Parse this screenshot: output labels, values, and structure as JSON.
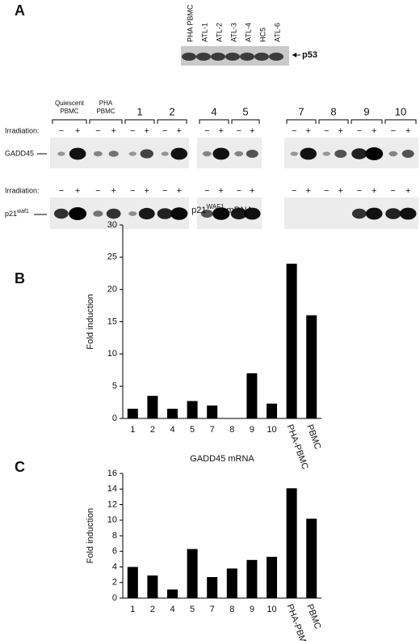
{
  "panel_a": {
    "label": "A",
    "p53_lanes": [
      "PHA PBMC",
      "ATL-1",
      "ATL-2",
      "ATL-3",
      "ATL-4",
      "HC5",
      "ATL-6"
    ],
    "p53_label": "p53",
    "groups": [
      [
        "Quiescent",
        "PBMC"
      ],
      [
        "PHA",
        "PBMC"
      ],
      [
        "1"
      ],
      [
        "2"
      ],
      [
        "4"
      ],
      [
        "5"
      ],
      [
        "7"
      ],
      [
        "8"
      ],
      [
        "9"
      ],
      [
        "10"
      ]
    ],
    "irradiation": "Irradiation:",
    "minus": "−",
    "plus": "+",
    "gadd45": "GADD45",
    "p21": "p21",
    "p21_sup": "waf1"
  },
  "chart_data": [
    {
      "type": "bar",
      "label": "B",
      "title": "p21",
      "title_sup": "WAF1",
      "title_rest": " mRNA",
      "y_label": "Fold induction",
      "categories": [
        "1",
        "2",
        "4",
        "5",
        "7",
        "8",
        "9",
        "10",
        "PHA-PBMC",
        "PBMC"
      ],
      "values": [
        1.5,
        3.5,
        1.5,
        2.7,
        2,
        0,
        7,
        2.3,
        24,
        16
      ],
      "color": "#000000",
      "ylim": [
        0,
        30
      ],
      "yticks": [
        0,
        5,
        10,
        15,
        20,
        25,
        30
      ]
    },
    {
      "type": "bar",
      "label": "C",
      "title": "GADD45 mRNA",
      "y_label": "Fold induction",
      "categories": [
        "1",
        "2",
        "4",
        "5",
        "7",
        "8",
        "9",
        "10",
        "PHA-PBMC",
        "PBMC"
      ],
      "values": [
        4,
        2.9,
        1.1,
        6.3,
        2.7,
        3.8,
        4.9,
        5.3,
        14.1,
        10.2
      ],
      "color": "#000000",
      "ylim": [
        0,
        16
      ],
      "yticks": [
        0,
        2,
        4,
        6,
        8,
        10,
        12,
        14,
        16
      ]
    }
  ]
}
